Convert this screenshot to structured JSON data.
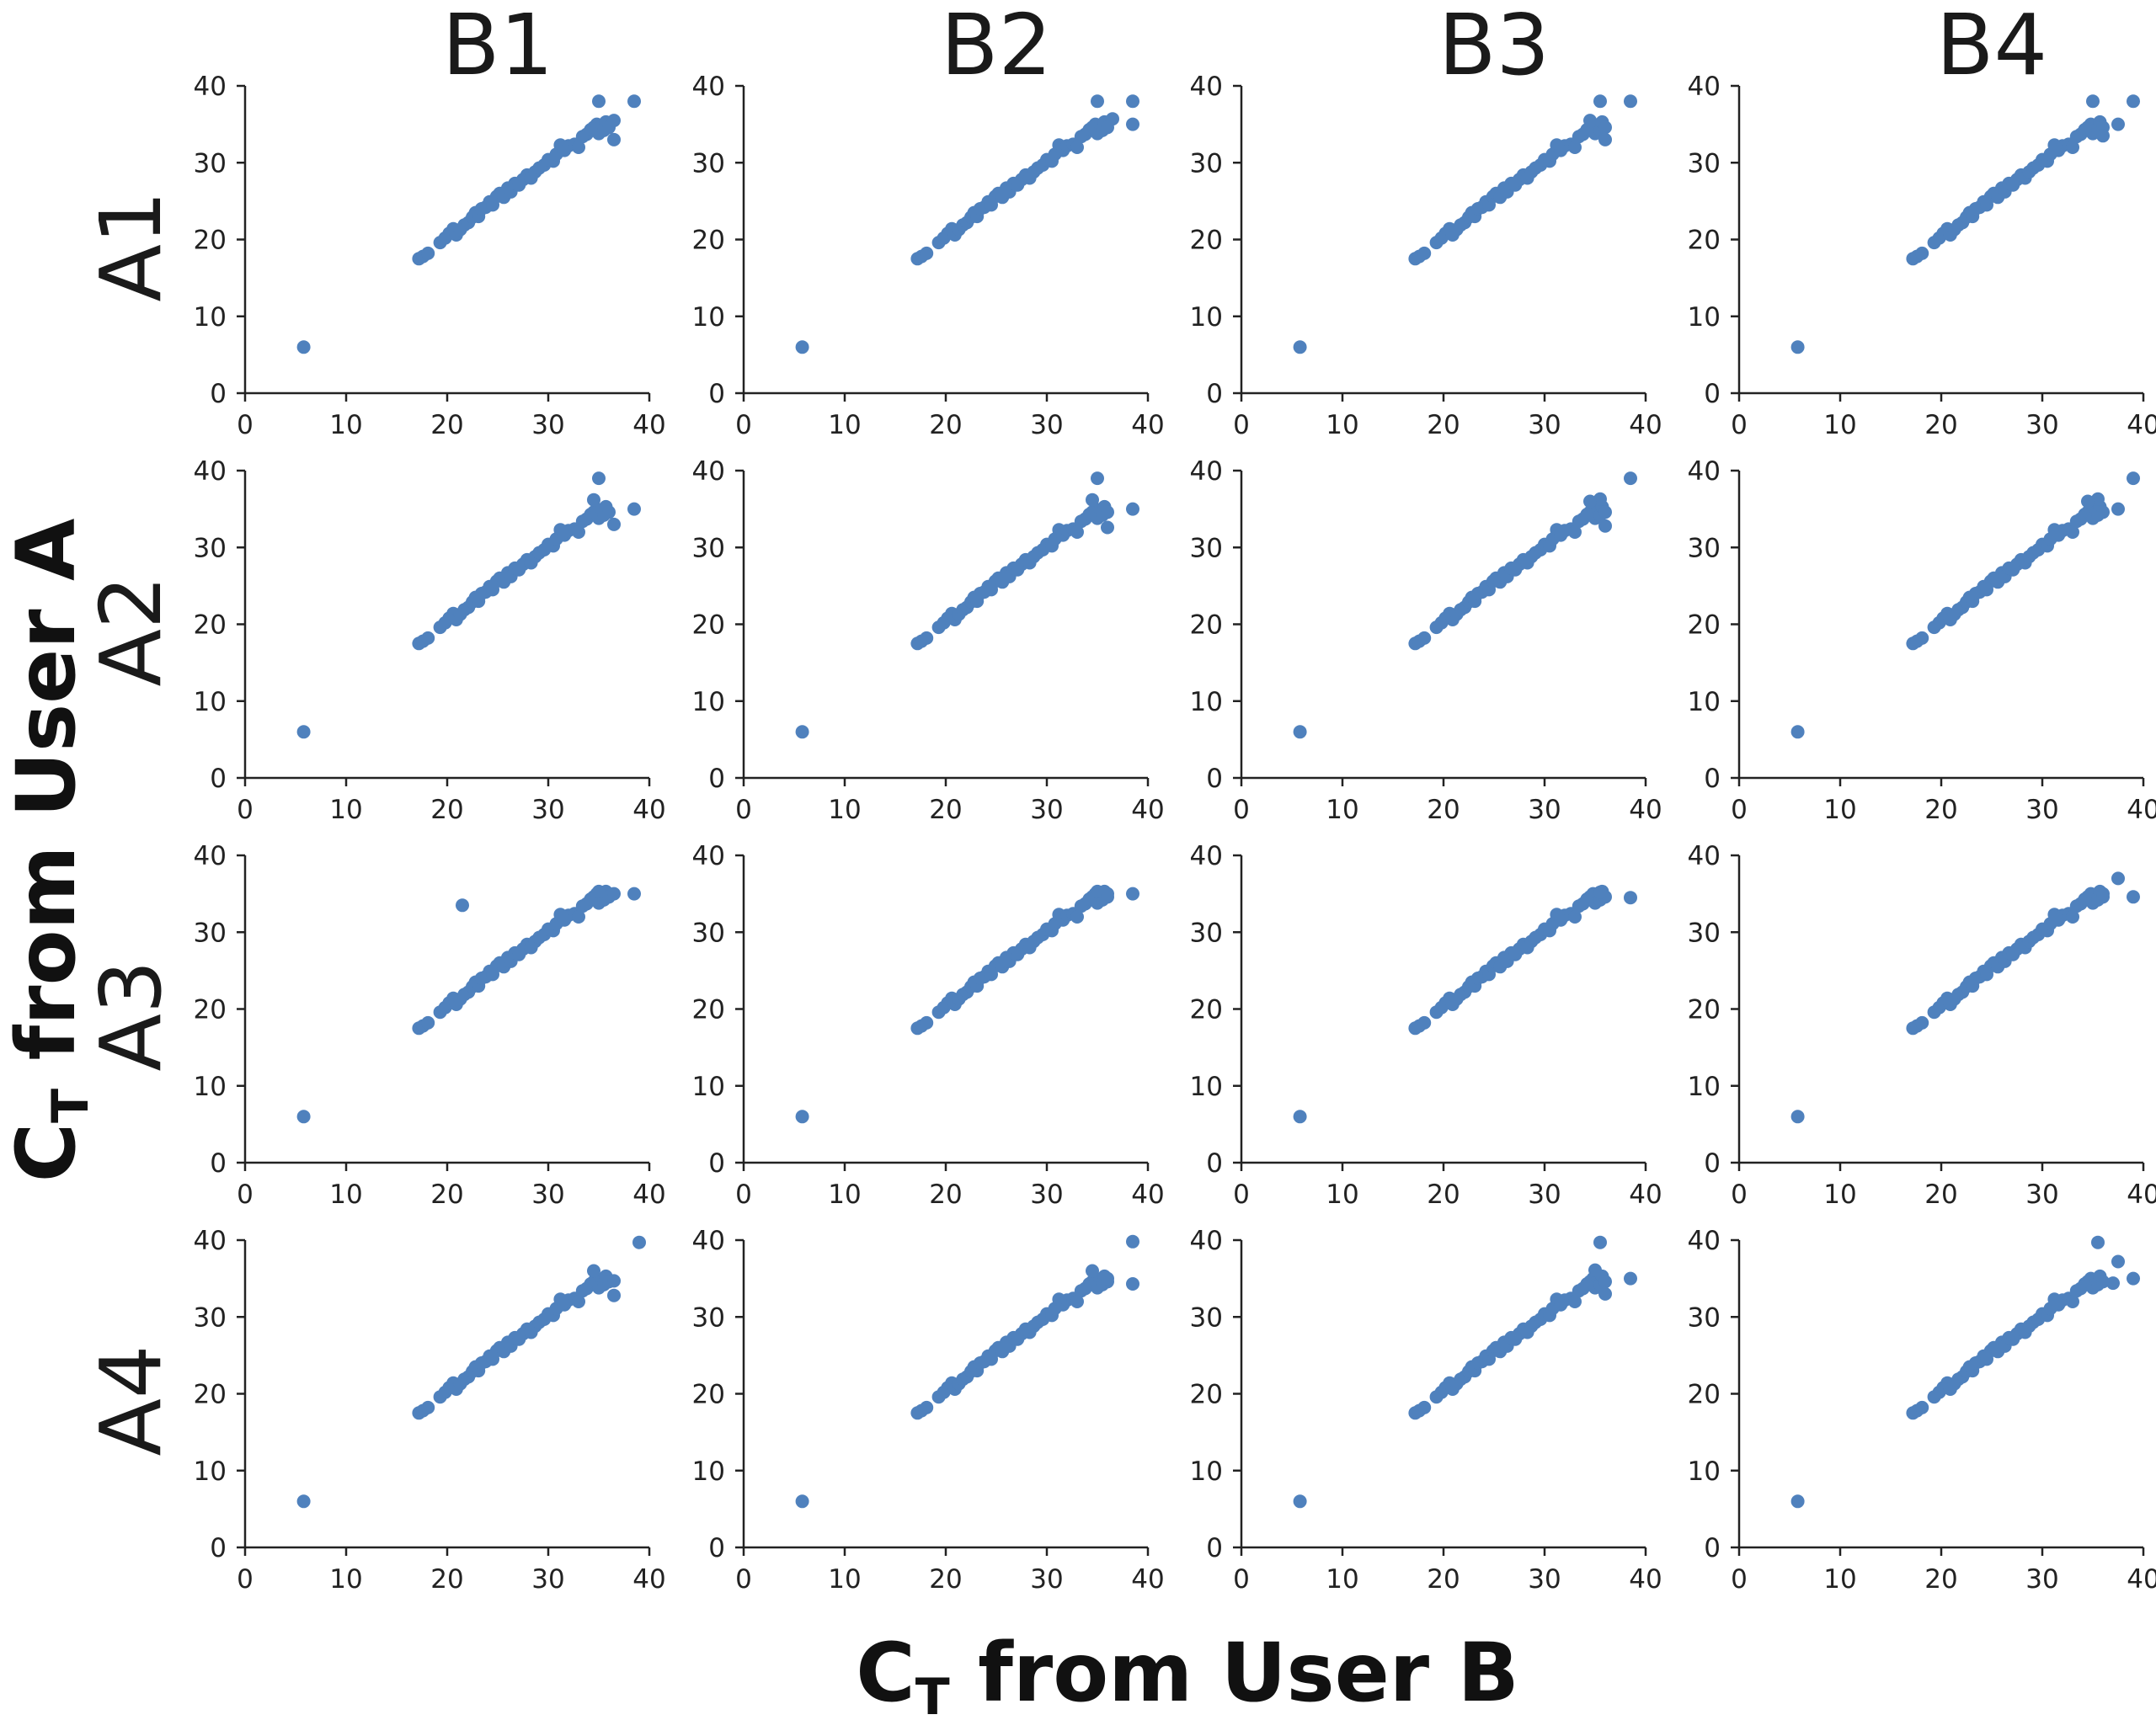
{
  "figure": {
    "x_axis_title": {
      "main": "C",
      "sub": "T",
      "rest": " from User B"
    },
    "y_axis_title": {
      "main": "C",
      "sub": "T",
      "rest": " from User A"
    }
  },
  "colors": {
    "point": "#4f81bd",
    "axis": "#222222",
    "text": "#1a1a1a"
  },
  "chart_data": {
    "type": "scatter",
    "title": "",
    "xlabel": "CT from User B",
    "ylabel": "CT from User A",
    "xlim": [
      0,
      40
    ],
    "ylim": [
      0,
      40
    ],
    "x_ticks": [
      "0",
      "10",
      "20",
      "30",
      "40"
    ],
    "y_ticks": [
      "0",
      "10",
      "20",
      "30",
      "40"
    ],
    "grid": false,
    "legend": "none",
    "col_labels": [
      "B1",
      "B2",
      "B3",
      "B4"
    ],
    "row_labels": [
      "A1",
      "A2",
      "A3",
      "A4"
    ],
    "base_points": [
      [
        5.8,
        6.0
      ],
      [
        17.2,
        17.5
      ],
      [
        17.6,
        17.8
      ],
      [
        18.1,
        18.2
      ],
      [
        19.3,
        19.6
      ],
      [
        19.8,
        20.2
      ],
      [
        20.2,
        20.8
      ],
      [
        20.6,
        21.4
      ],
      [
        20.9,
        20.6
      ],
      [
        21.3,
        21.3
      ],
      [
        21.7,
        21.9
      ],
      [
        22.1,
        22.2
      ],
      [
        22.5,
        22.9
      ],
      [
        22.8,
        23.5
      ],
      [
        23.1,
        23.0
      ],
      [
        23.4,
        24.0
      ],
      [
        23.8,
        24.2
      ],
      [
        24.2,
        24.9
      ],
      [
        24.5,
        24.5
      ],
      [
        24.9,
        25.6
      ],
      [
        25.2,
        26.0
      ],
      [
        25.6,
        25.5
      ],
      [
        26.0,
        26.7
      ],
      [
        26.3,
        26.2
      ],
      [
        26.7,
        27.3
      ],
      [
        27.1,
        27.1
      ],
      [
        27.5,
        27.8
      ],
      [
        27.9,
        28.4
      ],
      [
        28.3,
        28.0
      ],
      [
        28.7,
        28.8
      ],
      [
        29.1,
        29.3
      ],
      [
        29.6,
        29.7
      ],
      [
        30.0,
        30.4
      ],
      [
        30.5,
        30.2
      ],
      [
        30.8,
        31.1
      ],
      [
        31.2,
        32.3
      ],
      [
        31.6,
        31.6
      ],
      [
        32.0,
        32.2
      ],
      [
        32.6,
        32.4
      ],
      [
        33.0,
        32.0
      ],
      [
        33.4,
        33.4
      ],
      [
        33.8,
        33.7
      ],
      [
        34.2,
        34.3
      ],
      [
        34.5,
        34.6
      ],
      [
        34.8,
        35.0
      ],
      [
        35.0,
        33.8
      ],
      [
        35.3,
        34.9
      ],
      [
        35.5,
        34.2
      ],
      [
        35.7,
        35.3
      ],
      [
        36.0,
        34.6
      ]
    ],
    "panels": [
      {
        "row": "A1",
        "col": "B1",
        "extra_points": [
          [
            35.0,
            38.0
          ],
          [
            38.5,
            38.0
          ],
          [
            36.5,
            33.0
          ],
          [
            36.5,
            35.5
          ]
        ]
      },
      {
        "row": "A1",
        "col": "B2",
        "extra_points": [
          [
            35.0,
            38.0
          ],
          [
            38.5,
            38.0
          ],
          [
            38.5,
            35.0
          ],
          [
            36.5,
            35.7
          ]
        ]
      },
      {
        "row": "A1",
        "col": "B3",
        "extra_points": [
          [
            35.5,
            38.0
          ],
          [
            38.5,
            38.0
          ],
          [
            36.0,
            33.0
          ],
          [
            34.5,
            35.5
          ]
        ]
      },
      {
        "row": "A1",
        "col": "B4",
        "extra_points": [
          [
            35.0,
            38.0
          ],
          [
            39.0,
            38.0
          ],
          [
            37.5,
            35.0
          ],
          [
            36.0,
            33.5
          ]
        ]
      },
      {
        "row": "A2",
        "col": "B1",
        "extra_points": [
          [
            35.0,
            39.0
          ],
          [
            38.5,
            35.0
          ],
          [
            34.5,
            36.2
          ],
          [
            36.5,
            33.0
          ]
        ]
      },
      {
        "row": "A2",
        "col": "B2",
        "extra_points": [
          [
            35.0,
            39.0
          ],
          [
            38.5,
            35.0
          ],
          [
            34.5,
            36.2
          ],
          [
            36.0,
            32.6
          ]
        ]
      },
      {
        "row": "A2",
        "col": "B3",
        "extra_points": [
          [
            38.5,
            39.0
          ],
          [
            35.5,
            36.3
          ],
          [
            34.5,
            36.0
          ],
          [
            36.0,
            32.8
          ]
        ]
      },
      {
        "row": "A2",
        "col": "B4",
        "extra_points": [
          [
            39.0,
            39.0
          ],
          [
            37.5,
            35.0
          ],
          [
            35.5,
            36.3
          ],
          [
            34.5,
            36.0
          ]
        ]
      },
      {
        "row": "A3",
        "col": "B1",
        "extra_points": [
          [
            21.5,
            33.5
          ],
          [
            38.5,
            35.0
          ],
          [
            35.0,
            35.3
          ],
          [
            36.5,
            35.0
          ]
        ]
      },
      {
        "row": "A3",
        "col": "B2",
        "extra_points": [
          [
            38.5,
            35.0
          ],
          [
            35.0,
            35.3
          ],
          [
            36.0,
            35.0
          ]
        ]
      },
      {
        "row": "A3",
        "col": "B3",
        "extra_points": [
          [
            38.5,
            34.5
          ],
          [
            35.5,
            35.2
          ]
        ]
      },
      {
        "row": "A3",
        "col": "B4",
        "extra_points": [
          [
            37.5,
            37.0
          ],
          [
            39.0,
            34.6
          ],
          [
            36.0,
            35.0
          ]
        ]
      },
      {
        "row": "A4",
        "col": "B1",
        "extra_points": [
          [
            39.0,
            39.7
          ],
          [
            36.5,
            32.8
          ],
          [
            34.5,
            36.0
          ],
          [
            36.5,
            34.7
          ]
        ]
      },
      {
        "row": "A4",
        "col": "B2",
        "extra_points": [
          [
            38.5,
            39.8
          ],
          [
            38.5,
            34.3
          ],
          [
            34.5,
            36.0
          ],
          [
            36.0,
            35.0
          ]
        ]
      },
      {
        "row": "A4",
        "col": "B3",
        "extra_points": [
          [
            35.5,
            39.7
          ],
          [
            38.5,
            35.0
          ],
          [
            35.0,
            36.1
          ],
          [
            36.0,
            33.0
          ]
        ]
      },
      {
        "row": "A4",
        "col": "B4",
        "extra_points": [
          [
            35.5,
            39.7
          ],
          [
            37.5,
            37.2
          ],
          [
            39.0,
            35.0
          ],
          [
            37.0,
            34.4
          ]
        ]
      }
    ]
  }
}
